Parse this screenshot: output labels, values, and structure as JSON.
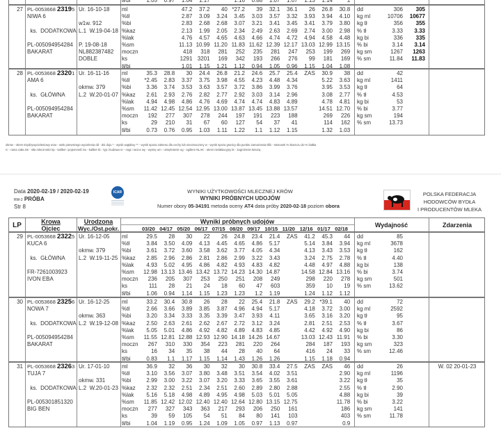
{
  "months": [
    "03/20",
    "04/17",
    "05/20",
    "06/17",
    "07/15",
    "08/20",
    "09/17",
    "10/15",
    "11/20",
    "12/16",
    "01/17",
    "02/18"
  ],
  "measure_labels": [
    "ml",
    "%tł",
    "%bi",
    "%kaz",
    "%lak",
    "%sm",
    "moczn",
    "ks",
    "tł/bi"
  ],
  "partial_row": {
    "label": "tł/bi",
    "values": [
      "1.05",
      "0.97",
      "1.04",
      "1.17",
      "",
      "1.16",
      "0.88",
      "1.07",
      "1.07",
      "1.13",
      "1.14",
      "1"
    ]
  },
  "page1_rows": [
    {
      "lp": "27",
      "id_prefix": "PL-0053668 ",
      "id_bold": "2319",
      "id_suffix": "5",
      "cow_lines": [
        "",
        "NIWA 6",
        "",
        "  ks.  DODATKOWA",
        "",
        "PL-005094954284",
        "BAKARAT",
        "",
        ""
      ],
      "born_lines": [
        "Ur. 16-10-18",
        "",
        "w1w. 912",
        "L.1  W.19-04-18",
        "",
        "P. 19-08-18",
        "NL882387482",
        "DOBLE",
        ""
      ],
      "values": [
        [
          "",
          "",
          "47.2",
          "37.2",
          "40",
          "*27.2",
          "39",
          "32.1",
          "36.1",
          "26",
          "26.8",
          "30.8"
        ],
        [
          "",
          "",
          "2.87",
          "3.09",
          "3.24",
          "3.45",
          "3.03",
          "3.57",
          "3.32",
          "3.93",
          "3.94",
          "4.10"
        ],
        [
          "",
          "",
          "2.83",
          "2.68",
          "2.68",
          "3.07",
          "3.21",
          "3.41",
          "3.45",
          "3.41",
          "3.79",
          "3.80"
        ],
        [
          "",
          "",
          "2.13",
          "1.99",
          "2.05",
          "2.34",
          "2.49",
          "2.63",
          "2.69",
          "2.74",
          "3.00",
          "2.98"
        ],
        [
          "",
          "",
          "4.76",
          "4.57",
          "4.65",
          "4.63",
          "4.66",
          "4.74",
          "4.72",
          "4.94",
          "4.58",
          "4.48"
        ],
        [
          "",
          "",
          "11.13",
          "10.99",
          "11.20",
          "11.83",
          "11.62",
          "12.39",
          "12.17",
          "13.03",
          "12.99",
          "13.15"
        ],
        [
          "",
          "",
          "418",
          "318",
          "281",
          "252",
          "235",
          "281",
          "247",
          "253",
          "199",
          "269"
        ],
        [
          "",
          "",
          "1291",
          "3201",
          "169",
          "342",
          "193",
          "266",
          "276",
          "99",
          "181",
          "169"
        ],
        [
          "",
          "",
          "1.01",
          "1.15",
          "1.21",
          "1.12",
          "0.94",
          "1.05",
          "0.96",
          "1.15",
          "1.04",
          "1.08"
        ]
      ],
      "yield": [
        [
          "dd",
          "306",
          "305"
        ],
        [
          "kg ml",
          "10706",
          "10677"
        ],
        [
          "kg tł",
          "356",
          "355"
        ],
        [
          "% tł",
          "3.33",
          "3.33"
        ],
        [
          "kg bi",
          "336",
          "335"
        ],
        [
          "% bi",
          "3.14",
          "3.14"
        ],
        [
          "kg sm",
          "1267",
          "1263"
        ],
        [
          "% sm",
          "11.84",
          "11.83"
        ]
      ],
      "events": ""
    },
    {
      "lp": "28",
      "id_prefix": "PL-0053668 ",
      "id_bold": "2320",
      "id_suffix": "1",
      "cow_lines": [
        "",
        "AMA 6",
        "",
        "  ks.  GŁÓWNA",
        "",
        "PL-005094954284",
        "BAKARAT",
        "",
        ""
      ],
      "born_lines": [
        "Ur. 16-11-16",
        "",
        "okmw. 379",
        "L.2  W.20-01-07",
        "",
        "",
        "",
        "",
        ""
      ],
      "values": [
        [
          "35.3",
          "28.8",
          "30",
          "24.4",
          "26.8",
          "21.2",
          "24.6",
          "25.7",
          "25.4",
          "ZAS",
          "30.9",
          "38"
        ],
        [
          "*2.45",
          "2.83",
          "3.37",
          "3.75",
          "3.98",
          "4.55",
          "4.23",
          "4.48",
          "4.34",
          "",
          "5.22",
          "3.63"
        ],
        [
          "3.36",
          "3.74",
          "3.53",
          "3.63",
          "3.57",
          "3.72",
          "3.86",
          "3.99",
          "3.76",
          "",
          "3.95",
          "3.53"
        ],
        [
          "2.61",
          "2.93",
          "2.76",
          "2.82",
          "2.77",
          "2.92",
          "3.03",
          "3.14",
          "2.96",
          "",
          "3.08",
          "2.77"
        ],
        [
          "4.94",
          "4.98",
          "4.86",
          "4.76",
          "4.69",
          "4.74",
          "4.74",
          "4.83",
          "4.89",
          "",
          "4.78",
          "4.81"
        ],
        [
          "11.42",
          "12.45",
          "12.54",
          "12.95",
          "13.00",
          "13.87",
          "13.45",
          "13.88",
          "13.57",
          "",
          "14.51",
          "12.70"
        ],
        [
          "192",
          "277",
          "307",
          "278",
          "244",
          "197",
          "191",
          "223",
          "188",
          "",
          "269",
          "226"
        ],
        [
          "29",
          "210",
          "31",
          "67",
          "60",
          "127",
          "54",
          "37",
          "41",
          "",
          "114",
          "162"
        ],
        [
          "0.73",
          "0.76",
          "0.95",
          "1.03",
          "1.11",
          "1.22",
          "1.1",
          "1.12",
          "1.15",
          "",
          "1.32",
          "1.03"
        ]
      ],
      "yield": [
        [
          "dd",
          "42",
          ""
        ],
        [
          "kg ml",
          "1411",
          ""
        ],
        [
          "kg tł",
          "64",
          ""
        ],
        [
          "% tł",
          "4.53",
          ""
        ],
        [
          "kg bi",
          "53",
          ""
        ],
        [
          "% bi",
          "3.77",
          ""
        ],
        [
          "kg sm",
          "194",
          ""
        ],
        [
          "% sm",
          "13.73",
          ""
        ]
      ],
      "events": ""
    }
  ],
  "legend": {
    "line1": "okmw - okres międzywycieleniowy   w1w - wiek pierwszego wycielenia   dd - dni doju   * - wynik wątpliwy   ** - wynik spoza zakresu dla cechy lub nieoznaczony   w - wynik spoza granicy dla punktu zamarzania   tł/bi - stosunek % tłuszczu do % białka",
    "line2": "rc - rama ciała   sm - siła mleczności   kp - kaliber i pojemność   ka - kaliber   tb - typ i budowa   nr - nogi i racice   wy - wymię   um - umięśnienie   og - ogółem   NLAK - okres nielaktacyjny   kt - zagrożenie ketozą"
  },
  "page2_header": {
    "date_label": "Data",
    "date_value": "2020-02-19 / 2020-02-19",
    "rw": "RW-2",
    "proba": "PRÓBA",
    "page": "Str 8",
    "icar_logo": "ICAR",
    "title1": "WYNIKI UŻYTKOWOŚCI MLECZNEJ KRÓW",
    "title2": "WYNIKI PRÓBNYCH UDOJÓW",
    "herd_label": "Numer obory",
    "herd_value": "05-34191",
    "method_label": "metoda oceny",
    "method_value": "AT4",
    "test_label": "data próby",
    "test_value": "2020-02-18",
    "level_label": "poziom",
    "level_value": "obora",
    "org_line1": "POLSKA FEDERACJA",
    "org_line2": "HODOWCÓW BYDŁA",
    "org_line3": "I PRODUCENTÓW MLEKA",
    "org_logo": "PFHBiPM"
  },
  "table_header": {
    "lp": "LP",
    "cow": "Krowa",
    "sire": "Ojciec",
    "born": "Urodzona",
    "calving": "Wyc./Ost.pokr.",
    "results": "Wyniki próbnych udojów",
    "yield": "Wydajność",
    "events": "Zdarzenia"
  },
  "page2_rows": [
    {
      "lp": "29",
      "id_prefix": "PL-0053668 ",
      "id_bold": "2322",
      "id_suffix": "5",
      "cow_lines": [
        "",
        "KUCA 6",
        "",
        "  ks.  GŁÓWNA",
        "",
        "FR-7261003923",
        "IVON EBA",
        "",
        ""
      ],
      "born_lines": [
        "Ur. 16-12-05",
        "",
        "okmw. 379",
        "L.2  W.19-11-25",
        "",
        "",
        "",
        "",
        ""
      ],
      "values": [
        [
          "29.5",
          "28",
          "30",
          "22",
          "26",
          "24.8",
          "23.4",
          "21.4",
          "ZAS",
          "41.2",
          "45.3",
          "44"
        ],
        [
          "3.84",
          "3.50",
          "4.09",
          "4.13",
          "4.45",
          "4.65",
          "4.86",
          "5.17",
          "",
          "5.14",
          "3.84",
          "3.94"
        ],
        [
          "3.61",
          "3.72",
          "3.60",
          "3.58",
          "3.62",
          "3.77",
          "4.05",
          "4.34",
          "",
          "4.13",
          "3.43",
          "3.53"
        ],
        [
          "2.85",
          "2.96",
          "2.86",
          "2.81",
          "2.86",
          "2.99",
          "3.22",
          "3.43",
          "",
          "3.24",
          "2.75",
          "2.78"
        ],
        [
          "4.93",
          "5.02",
          "4.95",
          "4.86",
          "4.82",
          "4.93",
          "4.83",
          "4.82",
          "",
          "4.48",
          "4.97",
          "4.88"
        ],
        [
          "12.98",
          "13.13",
          "13.46",
          "13.42",
          "13.72",
          "14.23",
          "14.30",
          "14.87",
          "",
          "14.58",
          "12.84",
          "13.16"
        ],
        [
          "236",
          "205",
          "307",
          "253",
          "250",
          "251",
          "208",
          "249",
          "",
          "298",
          "220",
          "278"
        ],
        [
          "111",
          "28",
          "21",
          "24",
          "18",
          "60",
          "47",
          "603",
          "",
          "359",
          "10",
          "19"
        ],
        [
          "1.06",
          "0.94",
          "1.14",
          "1.15",
          "1.23",
          "1.23",
          "1.2",
          "1.19",
          "",
          "1.24",
          "1.12",
          "1.12"
        ]
      ],
      "yield": [
        [
          "dd",
          "85",
          ""
        ],
        [
          "kg ml",
          "3678",
          ""
        ],
        [
          "kg tł",
          "162",
          ""
        ],
        [
          "% tł",
          "4.40",
          ""
        ],
        [
          "kg bi",
          "138",
          ""
        ],
        [
          "% bi",
          "3.74",
          ""
        ],
        [
          "kg sm",
          "501",
          ""
        ],
        [
          "% sm",
          "13.62",
          ""
        ]
      ],
      "events": ""
    },
    {
      "lp": "30",
      "id_prefix": "PL-0053668 ",
      "id_bold": "2325",
      "id_suffix": "6",
      "cow_lines": [
        "",
        "NOWA 7",
        "",
        "  ks.  DODATKOWA",
        "",
        "PL-005094954284",
        "BAKARAT",
        "",
        ""
      ],
      "born_lines": [
        "Ur. 16-12-25",
        "",
        "okmw. 363",
        "L.2  W.19-12-08",
        "",
        "",
        "",
        "",
        ""
      ],
      "values": [
        [
          "33.2",
          "30.4",
          "30.8",
          "26",
          "28",
          "22",
          "25.4",
          "21.8",
          "ZAS",
          "29.2",
          "*39.1",
          "40"
        ],
        [
          "2.66",
          "3.66",
          "3.89",
          "3.85",
          "3.87",
          "4.96",
          "4.94",
          "5.17",
          "",
          "4.18",
          "3.72",
          "3.00"
        ],
        [
          "3.20",
          "3.34",
          "3.33",
          "3.35",
          "3.39",
          "3.47",
          "3.93",
          "4.11",
          "",
          "3.65",
          "3.16",
          "3.20"
        ],
        [
          "2.50",
          "2.63",
          "2.61",
          "2.62",
          "2.67",
          "2.72",
          "3.12",
          "3.24",
          "",
          "2.81",
          "2.51",
          "2.53"
        ],
        [
          "5.05",
          "5.01",
          "4.86",
          "4.92",
          "4.82",
          "4.89",
          "4.83",
          "4.85",
          "",
          "4.42",
          "4.92",
          "4.90"
        ],
        [
          "11.55",
          "12.81",
          "12.88",
          "12.93",
          "12.90",
          "14.18",
          "14.26",
          "14.67",
          "",
          "13.03",
          "12.43",
          "11.91"
        ],
        [
          "267",
          "310",
          "330",
          "354",
          "223",
          "281",
          "220",
          "264",
          "",
          "284",
          "187",
          "193"
        ],
        [
          "16",
          "34",
          "35",
          "38",
          "44",
          "28",
          "40",
          "64",
          "",
          "416",
          "24",
          "33"
        ],
        [
          "0.83",
          "1.1",
          "1.17",
          "1.15",
          "1.14",
          "1.43",
          "1.26",
          "1.26",
          "",
          "1.15",
          "1.18",
          "0.94"
        ]
      ],
      "yield": [
        [
          "dd",
          "72",
          ""
        ],
        [
          "kg ml",
          "2592",
          ""
        ],
        [
          "kg tł",
          "95",
          ""
        ],
        [
          "% tł",
          "3.67",
          ""
        ],
        [
          "kg bi",
          "86",
          ""
        ],
        [
          "% bi",
          "3.30",
          ""
        ],
        [
          "kg sm",
          "323",
          ""
        ],
        [
          "% sm",
          "12.46",
          ""
        ]
      ],
      "events": ""
    },
    {
      "lp": "31",
      "id_prefix": "PL-0053668 ",
      "id_bold": "2326",
      "id_suffix": "3",
      "cow_lines": [
        "",
        "TUJA 7",
        "",
        "  ks.  DODATKOWA",
        "",
        "PL-005301851320",
        "BIG BEN",
        "",
        ""
      ],
      "born_lines": [
        "Ur. 17-01-10",
        "",
        "okmw. 331",
        "L.2  W.20-01-23",
        "",
        "",
        "",
        "",
        ""
      ],
      "values": [
        [
          "36.9",
          "32",
          "36",
          "30",
          "32",
          "30",
          "30.8",
          "33.4",
          "27.5",
          "ZAS",
          "ZAS",
          "46"
        ],
        [
          "3.10",
          "3.56",
          "3.07",
          "3.80",
          "3.48",
          "3.51",
          "3.54",
          "4.02",
          "3.51",
          "",
          "",
          "2.90"
        ],
        [
          "2.99",
          "3.00",
          "3.22",
          "3.07",
          "3.20",
          "3.33",
          "3.65",
          "3.55",
          "3.61",
          "",
          "",
          "3.22"
        ],
        [
          "2.32",
          "2.32",
          "2.51",
          "2.34",
          "2.51",
          "2.60",
          "2.89",
          "2.80",
          "2.88",
          "",
          "",
          "2.55"
        ],
        [
          "5.16",
          "5.18",
          "4.98",
          "4.89",
          "4.95",
          "4.98",
          "5.03",
          "5.01",
          "5.05",
          "",
          "",
          "4.88"
        ],
        [
          "11.85",
          "12.42",
          "12.02",
          "12.40",
          "12.40",
          "12.64",
          "12.80",
          "13.15",
          "12.75",
          "",
          "",
          "11.78"
        ],
        [
          "277",
          "327",
          "343",
          "363",
          "217",
          "293",
          "206",
          "250",
          "161",
          "",
          "",
          "186"
        ],
        [
          "39",
          "59",
          "105",
          "54",
          "51",
          "84",
          "80",
          "141",
          "103",
          "",
          "",
          "403"
        ],
        [
          "1.04",
          "1.19",
          "0.95",
          "1.24",
          "1.09",
          "1.05",
          "0.97",
          "1.13",
          "0.97",
          "",
          "",
          "0.9"
        ]
      ],
      "yield": [
        [
          "dd",
          "26",
          ""
        ],
        [
          "kg ml",
          "1196",
          ""
        ],
        [
          "kg tł",
          "35",
          ""
        ],
        [
          "% tł",
          "2.90",
          ""
        ],
        [
          "kg bi",
          "39",
          ""
        ],
        [
          "% bi",
          "3.22",
          ""
        ],
        [
          "kg sm",
          "141",
          ""
        ],
        [
          "% sm",
          "11.78",
          ""
        ]
      ],
      "events": "W. 02 20-01-23"
    }
  ],
  "colors": {
    "border": "#777777",
    "logo_red": "#d7261e",
    "icar_blue": "#1f5fa8"
  }
}
